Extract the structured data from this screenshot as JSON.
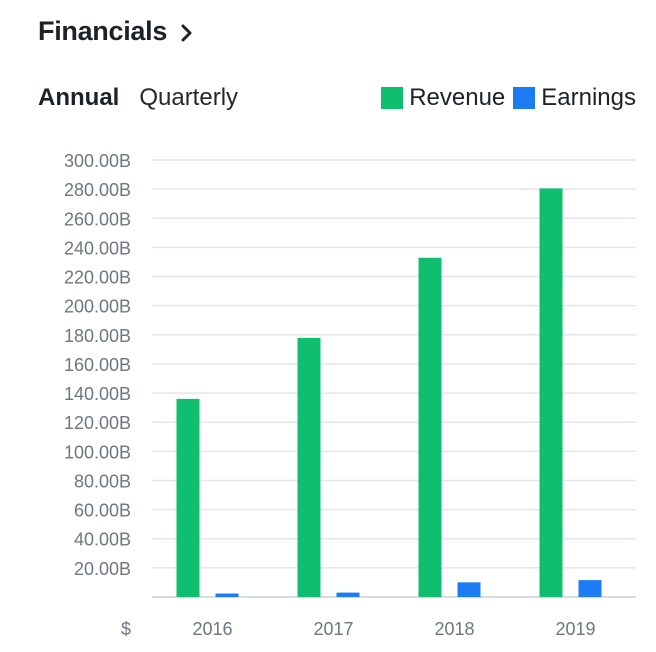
{
  "header": {
    "title": "Financials",
    "chevron_icon": "chevron-right-icon"
  },
  "tabs": [
    {
      "label": "Annual",
      "active": true
    },
    {
      "label": "Quarterly",
      "active": false
    }
  ],
  "legend": [
    {
      "label": "Revenue",
      "color": "#0fbf6f"
    },
    {
      "label": "Earnings",
      "color": "#1c7cf3"
    }
  ],
  "chart_data": {
    "type": "bar",
    "categories": [
      "2016",
      "2017",
      "2018",
      "2019"
    ],
    "series": [
      {
        "name": "Revenue",
        "color": "#0fbf6f",
        "values": [
          135.99,
          177.87,
          232.89,
          280.52
        ]
      },
      {
        "name": "Earnings",
        "color": "#1c7cf3",
        "values": [
          2.37,
          3.03,
          10.07,
          11.59
        ]
      }
    ],
    "ylim": [
      0,
      300
    ],
    "y_ticks": [
      "20.00B",
      "40.00B",
      "60.00B",
      "80.00B",
      "100.00B",
      "120.00B",
      "140.00B",
      "160.00B",
      "180.00B",
      "200.00B",
      "220.00B",
      "240.00B",
      "260.00B",
      "280.00B",
      "300.00B"
    ],
    "y_tick_values": [
      20,
      40,
      60,
      80,
      100,
      120,
      140,
      160,
      180,
      200,
      220,
      240,
      260,
      280,
      300
    ],
    "currency_label": "$",
    "grid": true
  }
}
